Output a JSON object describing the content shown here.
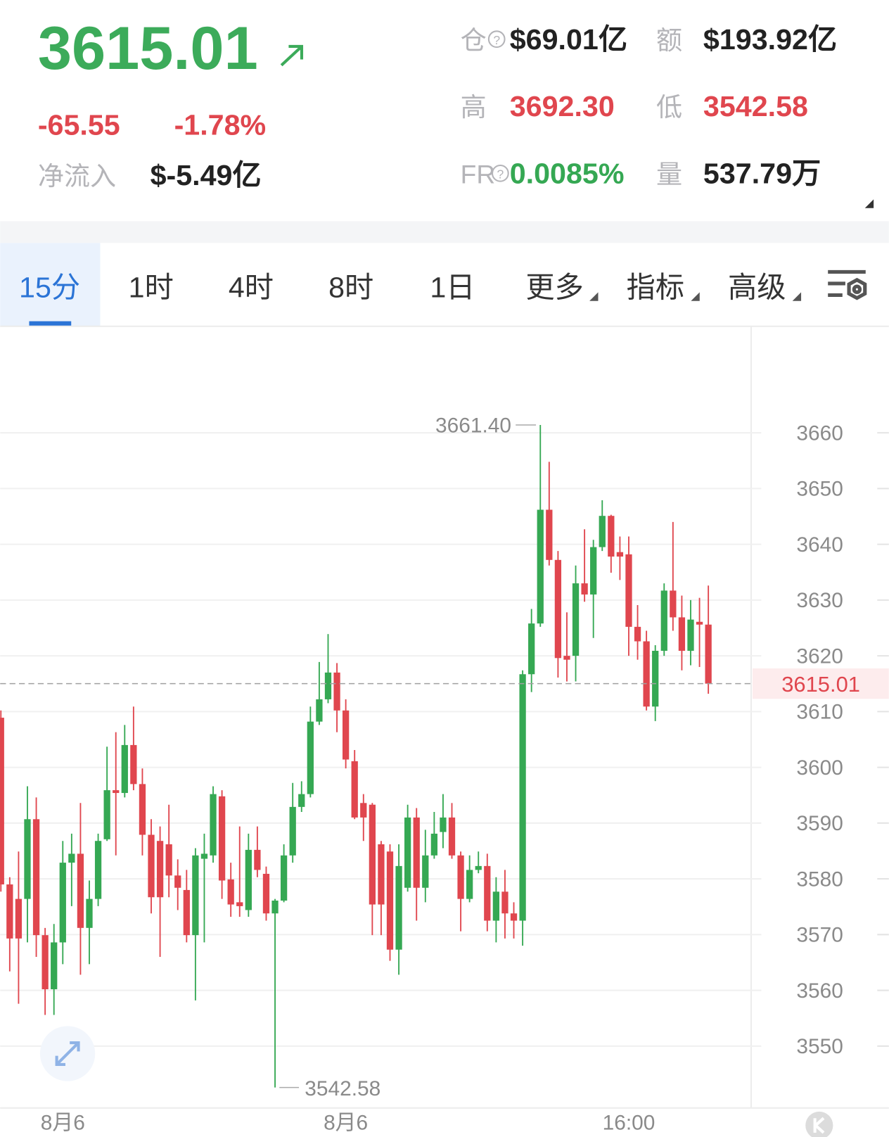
{
  "header": {
    "price": "3615.01",
    "change": "-65.55",
    "change_pct": "-1.78%",
    "net_inflow_label": "净流入",
    "net_inflow": "$-5.49亿",
    "stats": [
      {
        "label": "仓",
        "value": "$69.01亿"
      },
      {
        "label": "额",
        "value": "$193.92亿"
      },
      {
        "label": "高",
        "value": "3692.30"
      },
      {
        "label": "低",
        "value": "3542.58"
      },
      {
        "label": "FR",
        "value": "0.0085%"
      },
      {
        "label": "量",
        "value": "537.79万"
      }
    ]
  },
  "tabs": [
    "15分",
    "1时",
    "4时",
    "8时",
    "1日",
    "更多",
    "指标",
    "高级"
  ],
  "chart_data": {
    "type": "candlestick",
    "up_color": "#35a853",
    "down_color": "#e0464e",
    "grid": true,
    "categories": [
      null,
      null,
      null,
      null,
      null,
      null,
      null,
      "8月6",
      null,
      null,
      null,
      null,
      null,
      null,
      null,
      null,
      null,
      null,
      null,
      null,
      null,
      null,
      null,
      null,
      null,
      null,
      null,
      null,
      null,
      null,
      null,
      null,
      null,
      null,
      null,
      null,
      null,
      null,
      null,
      "8月6",
      null,
      null,
      null,
      null,
      null,
      null,
      null,
      null,
      null,
      null,
      null,
      null,
      null,
      null,
      null,
      null,
      null,
      null,
      null,
      null,
      null,
      null,
      null,
      null,
      null,
      null,
      null,
      null,
      null,
      null,
      null,
      "16:00",
      null,
      null,
      null,
      null,
      null,
      null,
      null,
      null,
      null
    ],
    "open": [
      3608.9,
      3579.0,
      3576.4,
      3576.4,
      3590.7,
      3569.9,
      3560.2,
      3568.6,
      3582.9,
      3584.5,
      3571.2,
      3576.4,
      3587.1,
      3595.9,
      3595.4,
      3604.0,
      3597.0,
      3587.9,
      3586.8,
      3586.2,
      3580.6,
      3578.0,
      3569.9,
      3583.6,
      3584.2,
      3594.8,
      3579.9,
      3575.8,
      3574.4,
      3585.2,
      3580.9,
      3573.8,
      3576.1,
      3584.2,
      3592.9,
      3595.2,
      3608.2,
      3612.2,
      3617.0,
      3610.2,
      3601.1,
      3593.6,
      3593.3,
      3586.2,
      3584.9,
      3567.3,
      3578.4,
      3591.0,
      3578.4,
      3584.2,
      3588.4,
      3591.0,
      3584.2,
      3576.4,
      3581.6,
      3582.3,
      3572.5,
      3577.7,
      3573.8,
      3572.5,
      3616.7,
      3625.8,
      3646.2,
      3637.2,
      3620.0,
      3620.0,
      3633.0,
      3631.0,
      3639.5,
      3645.1,
      3638.6,
      3638.2,
      3625.2,
      3622.6,
      3610.9,
      3620.9,
      3631.7,
      3626.9,
      3620.9,
      3626.1,
      3625.6
    ],
    "high": [
      3610.2,
      3580.3,
      3584.9,
      3596.6,
      3594.6,
      3571.2,
      3571.9,
      3586.8,
      3588.1,
      3593.6,
      3579.7,
      3588.1,
      3603.7,
      3606.3,
      3607.6,
      3610.9,
      3599.8,
      3590.7,
      3589.4,
      3593.3,
      3583.5,
      3581.6,
      3585.5,
      3588.1,
      3596.6,
      3595.9,
      3582.9,
      3589.4,
      3588.1,
      3589.4,
      3582.2,
      3576.4,
      3586.2,
      3597.2,
      3597.5,
      3610.9,
      3618.9,
      3623.9,
      3618.7,
      3612.2,
      3603.1,
      3595.2,
      3593.6,
      3586.8,
      3586.2,
      3586.2,
      3593.3,
      3592.7,
      3588.8,
      3592.0,
      3595.2,
      3593.6,
      3584.9,
      3584.2,
      3584.9,
      3584.5,
      3580.3,
      3581.6,
      3575.8,
      3617.4,
      3628.4,
      3661.4,
      3654.8,
      3638.8,
      3627.8,
      3636.2,
      3642.7,
      3640.8,
      3647.9,
      3645.3,
      3641.4,
      3641.4,
      3629.1,
      3624.5,
      3621.9,
      3633.0,
      3644.0,
      3630.8,
      3630.0,
      3630.4,
      3632.6
    ],
    "low": [
      3577.7,
      3563.4,
      3557.6,
      3568.6,
      3566.0,
      3555.6,
      3555.6,
      3564.7,
      3575.1,
      3562.8,
      3564.7,
      3575.1,
      3586.8,
      3584.2,
      3594.6,
      3595.9,
      3584.2,
      3573.8,
      3566.0,
      3576.7,
      3574.4,
      3568.6,
      3558.2,
      3568.6,
      3582.9,
      3576.4,
      3573.2,
      3573.2,
      3573.2,
      3580.3,
      3572.5,
      3542.58,
      3575.8,
      3582.9,
      3592.0,
      3594.6,
      3607.6,
      3611.5,
      3606.3,
      3599.8,
      3590.7,
      3586.8,
      3569.9,
      3569.9,
      3565.3,
      3562.8,
      3577.7,
      3572.5,
      3575.8,
      3583.6,
      3585.5,
      3583.6,
      3570.6,
      3575.8,
      3581.0,
      3570.6,
      3568.6,
      3569.3,
      3569.3,
      3568.0,
      3613.5,
      3625.2,
      3636.2,
      3616.1,
      3615.4,
      3615.4,
      3629.7,
      3623.2,
      3638.8,
      3634.9,
      3633.6,
      3620.0,
      3619.3,
      3610.2,
      3608.3,
      3620.0,
      3624.5,
      3617.4,
      3618.3,
      3618.0,
      3613.2
    ],
    "close": [
      3579.0,
      3569.3,
      3569.3,
      3590.7,
      3569.9,
      3560.2,
      3568.6,
      3582.9,
      3584.5,
      3571.2,
      3576.4,
      3586.8,
      3595.9,
      3595.4,
      3604.0,
      3597.0,
      3587.9,
      3576.7,
      3576.7,
      3580.6,
      3578.4,
      3569.9,
      3584.2,
      3584.5,
      3595.2,
      3579.7,
      3575.4,
      3575.1,
      3585.2,
      3581.6,
      3573.8,
      3576.1,
      3584.2,
      3592.9,
      3595.2,
      3608.2,
      3612.2,
      3617.0,
      3610.2,
      3601.4,
      3591.0,
      3591.0,
      3575.4,
      3575.4,
      3567.3,
      3582.3,
      3591.0,
      3578.4,
      3584.2,
      3588.1,
      3591.0,
      3584.2,
      3576.4,
      3581.6,
      3582.3,
      3572.5,
      3577.7,
      3573.8,
      3572.5,
      3616.7,
      3625.8,
      3646.2,
      3637.2,
      3619.6,
      3619.3,
      3633.0,
      3631.0,
      3639.5,
      3645.1,
      3637.8,
      3637.8,
      3625.2,
      3622.6,
      3610.9,
      3620.9,
      3631.7,
      3626.9,
      3620.9,
      3626.5,
      3625.6,
      3615.01
    ],
    "ylim": [
      3538.9,
      3679.1
    ],
    "yticks": [
      3550,
      3560,
      3570,
      3580,
      3590,
      3600,
      3610,
      3620,
      3630,
      3640,
      3650,
      3660
    ],
    "annotations": {
      "high_label": "3661.40",
      "low_label": "3542.58"
    }
  }
}
